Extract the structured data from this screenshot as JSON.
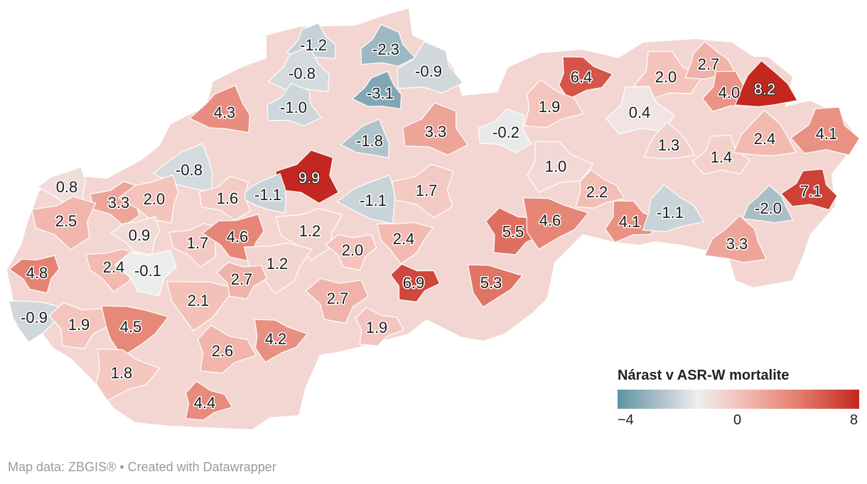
{
  "legend": {
    "title": "Nárast v ASR-W mortalite",
    "tick_min": "−4",
    "tick_mid": "0",
    "tick_max": "8",
    "range": [
      -4,
      8
    ],
    "stops": [
      {
        "value": -4,
        "color": "#5f94a3"
      },
      {
        "value": -2,
        "color": "#a9bec7"
      },
      {
        "value": 0,
        "color": "#efeeee"
      },
      {
        "value": 2,
        "color": "#f4c3bb"
      },
      {
        "value": 5,
        "color": "#e47d6d"
      },
      {
        "value": 8,
        "color": "#c4271f"
      }
    ]
  },
  "footer": "Map data: ZBGIS® • Created with Datawrapper",
  "districts": [
    {
      "label": "-1.2",
      "value": -1.2
    },
    {
      "label": "-2.3",
      "value": -2.3
    },
    {
      "label": "-0.8",
      "value": -0.8
    },
    {
      "label": "-0.9",
      "value": -0.9
    },
    {
      "label": "-3.1",
      "value": -3.1
    },
    {
      "label": "-1.0",
      "value": -1.0
    },
    {
      "label": "4.3",
      "value": 4.3
    },
    {
      "label": "3.3",
      "value": 3.3
    },
    {
      "label": "-1.8",
      "value": -1.8
    },
    {
      "label": "-0.2",
      "value": -0.2
    },
    {
      "label": "-0.8",
      "value": -0.8
    },
    {
      "label": "9.9",
      "value": 9.9
    },
    {
      "label": "-1.1",
      "value": -1.1
    },
    {
      "label": "1.6",
      "value": 1.6
    },
    {
      "label": "-1.1",
      "value": -1.1
    },
    {
      "label": "1.7",
      "value": 1.7
    },
    {
      "label": "0.8",
      "value": 0.8
    },
    {
      "label": "3.3",
      "value": 3.3
    },
    {
      "label": "2.0",
      "value": 2.0
    },
    {
      "label": "2.5",
      "value": 2.5
    },
    {
      "label": "0.9",
      "value": 0.9
    },
    {
      "label": "1.7",
      "value": 1.7
    },
    {
      "label": "4.6",
      "value": 4.6
    },
    {
      "label": "1.2",
      "value": 1.2
    },
    {
      "label": "4.8",
      "value": 4.8
    },
    {
      "label": "2.4",
      "value": 2.4
    },
    {
      "label": "-0.1",
      "value": -0.1
    },
    {
      "label": "1.2",
      "value": 1.2
    },
    {
      "label": "2.0",
      "value": 2.0
    },
    {
      "label": "2.4",
      "value": 2.4
    },
    {
      "label": "2.7",
      "value": 2.7
    },
    {
      "label": "2.1",
      "value": 2.1
    },
    {
      "label": "2.7",
      "value": 2.7
    },
    {
      "label": "-0.9",
      "value": -0.9
    },
    {
      "label": "1.9",
      "value": 1.9
    },
    {
      "label": "4.5",
      "value": 4.5
    },
    {
      "label": "6.9",
      "value": 6.9
    },
    {
      "label": "5.3",
      "value": 5.3
    },
    {
      "label": "5.5",
      "value": 5.5
    },
    {
      "label": "4.6",
      "value": 4.6
    },
    {
      "label": "1.9",
      "value": 1.9
    },
    {
      "label": "4.2",
      "value": 4.2
    },
    {
      "label": "2.6",
      "value": 2.6
    },
    {
      "label": "1.8",
      "value": 1.8
    },
    {
      "label": "4.4",
      "value": 4.4
    },
    {
      "label": "6.4",
      "value": 6.4
    },
    {
      "label": "1.9",
      "value": 1.9
    },
    {
      "label": "1.0",
      "value": 1.0
    },
    {
      "label": "2.2",
      "value": 2.2
    },
    {
      "label": "4.1",
      "value": 4.1
    },
    {
      "label": "-1.1",
      "value": -1.1
    },
    {
      "label": "2.0",
      "value": 2.0
    },
    {
      "label": "2.7",
      "value": 2.7
    },
    {
      "label": "4.0",
      "value": 4.0
    },
    {
      "label": "8.2",
      "value": 8.2
    },
    {
      "label": "0.4",
      "value": 0.4
    },
    {
      "label": "1.3",
      "value": 1.3
    },
    {
      "label": "1.4",
      "value": 1.4
    },
    {
      "label": "2.4",
      "value": 2.4
    },
    {
      "label": "4.1",
      "value": 4.1
    },
    {
      "label": "-2.0",
      "value": -2.0
    },
    {
      "label": "7.1",
      "value": 7.1
    },
    {
      "label": "3.3",
      "value": 3.3
    }
  ]
}
